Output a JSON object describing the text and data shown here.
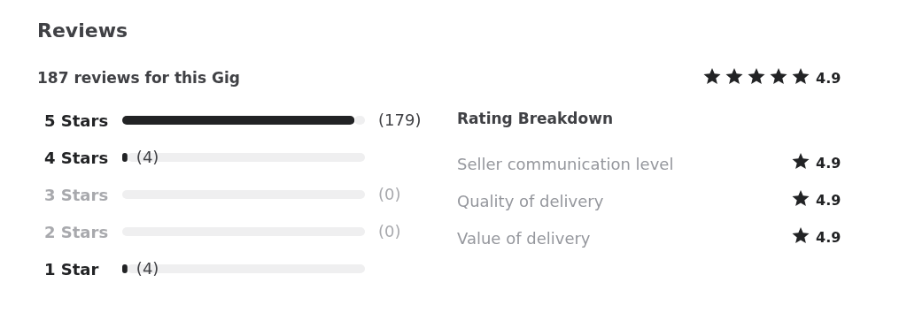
{
  "chart_data": {
    "type": "bar",
    "orientation": "horizontal",
    "stacked": true,
    "title": "Reviews",
    "subtitle": "187 reviews for this Gig",
    "categories": [
      "5 Stars",
      "4 Stars",
      "3 Stars",
      "2 Stars",
      "1 Star"
    ],
    "series": [
      {
        "color": "#222325",
        "values": [
          179,
          4,
          0,
          0,
          4
        ],
        "value_labels": [
          "(179)",
          "(4)",
          "(0)",
          "(0)",
          "(4)"
        ]
      },
      {
        "color": "#efeff0",
        "values": [
          8,
          183,
          187,
          187,
          183
        ]
      }
    ],
    "tick_labels": "y",
    "annotations": [
      "4.9",
      "Rating Breakdown",
      "Seller communication level",
      "4.9",
      "Quality of delivery",
      "4.9",
      "Value of delivery",
      "4.9"
    ]
  }
}
